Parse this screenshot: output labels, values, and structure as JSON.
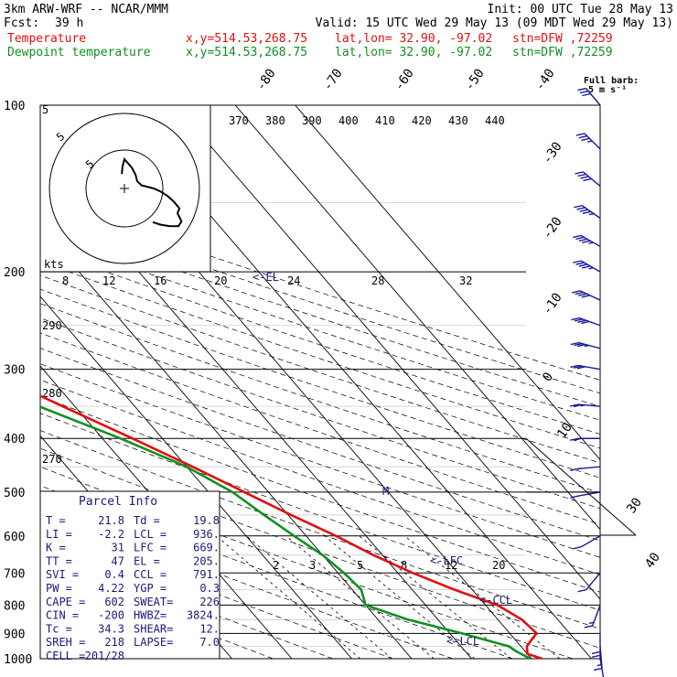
{
  "header": {
    "model": "3km ARW-WRF -- NCAR/MMM",
    "init": "Init: 00 UTC Tue 28 May 13",
    "fcst_label": "Fcst:",
    "fcst_value": "39 h",
    "valid": "Valid: 15 UTC Wed 29 May 13 (09 MDT Wed 29 May 13)",
    "line1": {
      "label": "Temperature",
      "xy": "x,y=514.53,268.75",
      "latlon": "lat,lon= 32.90, -97.02",
      "stn": "stn=DFW ,72259"
    },
    "line2": {
      "label": "Dewpoint temperature",
      "xy": "x,y=514.53,268.75",
      "latlon": "lat,lon= 32.90, -97.02",
      "stn": "stn=DFW ,72259"
    },
    "full_barb": "Full barb:",
    "full_barb_value": "5 m s⁻¹"
  },
  "chart_data": {
    "type": "line",
    "pressure_levels": [
      100,
      200,
      300,
      400,
      500,
      600,
      700,
      800,
      900,
      1000
    ],
    "pressure_labels": [
      "100",
      "200",
      "300",
      "400",
      "500",
      "600",
      "700",
      "800",
      "900",
      "1000"
    ],
    "top_isotherm_labels": [
      "-80",
      "-70",
      "-60",
      "-50",
      "-40"
    ],
    "right_isotherm_labels": [
      "-30",
      "-20",
      "-10",
      "0",
      "10"
    ],
    "lower_right_labels": [
      "30",
      "40"
    ],
    "theta_labels": [
      "370",
      "380",
      "390",
      "400",
      "410",
      "420",
      "430",
      "440"
    ],
    "theta_side_labels": [
      "290",
      "280",
      "270"
    ],
    "mixing_ratio_labels": [
      "2",
      "3",
      "5",
      "8",
      "12",
      "20"
    ],
    "hodo_kts_label": "kts",
    "hodo_speed_labels": [
      "8",
      "12",
      "16",
      "20",
      "24",
      "28",
      "32"
    ],
    "hodo_ring_labels": [
      "5",
      "5",
      "5"
    ],
    "series": [
      {
        "name": "Temperature",
        "color": "#e01010",
        "points": [
          [
            1000,
            21.8
          ],
          [
            980,
            20.0
          ],
          [
            950,
            21.0
          ],
          [
            920,
            23.0
          ],
          [
            900,
            24.5
          ],
          [
            850,
            24.0
          ],
          [
            800,
            22.0
          ],
          [
            750,
            17.0
          ],
          [
            700,
            12.5
          ],
          [
            650,
            8.5
          ],
          [
            600,
            5.0
          ],
          [
            550,
            0.5
          ],
          [
            500,
            -4.0
          ],
          [
            450,
            -9.0
          ],
          [
            400,
            -15.0
          ],
          [
            350,
            -22.0
          ],
          [
            300,
            -30.0
          ],
          [
            250,
            -40.0
          ],
          [
            225,
            -46.0
          ],
          [
            200,
            -52.0
          ],
          [
            180,
            -55.0
          ],
          [
            160,
            -58.0
          ],
          [
            140,
            -59.0
          ],
          [
            120,
            -60.0
          ],
          [
            100,
            -62.0
          ]
        ]
      },
      {
        "name": "Dewpoint temperature",
        "color": "#109020",
        "points": [
          [
            1000,
            19.8
          ],
          [
            970,
            18.5
          ],
          [
            950,
            18.0
          ],
          [
            900,
            12.0
          ],
          [
            850,
            5.0
          ],
          [
            800,
            0.0
          ],
          [
            750,
            1.5
          ],
          [
            700,
            1.0
          ],
          [
            650,
            0.0
          ],
          [
            600,
            -2.0
          ],
          [
            550,
            -4.0
          ],
          [
            500,
            -6.0
          ],
          [
            450,
            -10.0
          ],
          [
            400,
            -17.0
          ],
          [
            350,
            -26.0
          ],
          [
            300,
            -38.0
          ],
          [
            270,
            -50.0
          ],
          [
            250,
            -56.0
          ],
          [
            220,
            -60.0
          ],
          [
            200,
            -62.0
          ],
          [
            180,
            -65.0
          ],
          [
            160,
            -70.0
          ],
          [
            140,
            -75.0
          ],
          [
            120,
            -78.0
          ],
          [
            100,
            -80.0
          ]
        ]
      }
    ],
    "annotations": [
      "<-EL",
      "M",
      "<-LFC",
      "<-CCL",
      "<-LCL"
    ],
    "parcel_info": {
      "title": "Parcel Info",
      "rows": [
        [
          "T  =",
          "21.8",
          "Td =",
          "19.8"
        ],
        [
          "LI =",
          "-2.2",
          "LCL =",
          "936."
        ],
        [
          "K  =",
          "31",
          "LFC =",
          "669."
        ],
        [
          "TT =",
          "47",
          "EL =",
          "205."
        ],
        [
          "SVI =",
          "0.4",
          "CCL =",
          "791."
        ],
        [
          "PW =",
          "4.22",
          "YGP =",
          "0.3"
        ],
        [
          "CAPE =",
          "602",
          "SWEAT=",
          "226"
        ],
        [
          "CIN =",
          "-200",
          "HWBZ=",
          "3824."
        ],
        [
          "Tc =",
          "34.3",
          "SHEAR=",
          "12."
        ],
        [
          "SREH =",
          "218",
          "LAPSE=",
          "7.0"
        ],
        [
          "CELL =",
          "201/28",
          "",
          ""
        ]
      ]
    },
    "wind_profile": [
      [
        100,
        320,
        30
      ],
      [
        120,
        315,
        35
      ],
      [
        140,
        310,
        40
      ],
      [
        160,
        305,
        45
      ],
      [
        180,
        300,
        45
      ],
      [
        200,
        300,
        45
      ],
      [
        225,
        295,
        40
      ],
      [
        250,
        290,
        40
      ],
      [
        275,
        285,
        35
      ],
      [
        300,
        280,
        30
      ],
      [
        350,
        275,
        25
      ],
      [
        400,
        270,
        20
      ],
      [
        450,
        265,
        15
      ],
      [
        500,
        260,
        12
      ],
      [
        600,
        240,
        10
      ],
      [
        700,
        220,
        12
      ],
      [
        800,
        200,
        15
      ],
      [
        900,
        180,
        20
      ],
      [
        950,
        175,
        15
      ],
      [
        1000,
        170,
        10
      ]
    ]
  }
}
